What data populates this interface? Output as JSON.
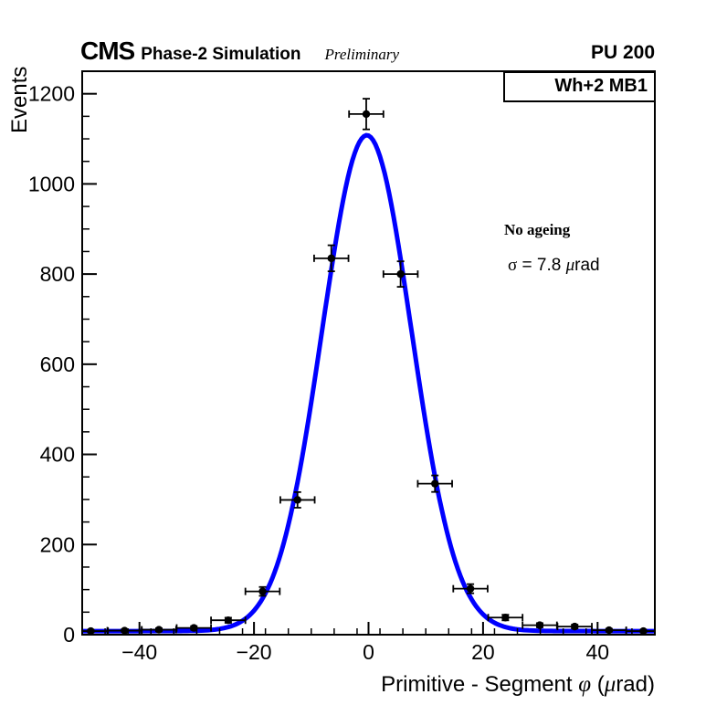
{
  "header": {
    "experiment": "CMS",
    "subtitle": "Phase-2 Simulation",
    "preliminary": "Preliminary",
    "pileup": "PU 200"
  },
  "pave": {
    "label": "Wh+2 MB1"
  },
  "annotations": {
    "ageing": "No ageing",
    "sigma_text_full": "σ = 7.8  μrad",
    "sigma_symbol": "σ",
    "sigma_value": " = 7.8 ",
    "sigma_unit_mu": "μ",
    "sigma_unit_rest": "rad"
  },
  "axis_titles": {
    "y": "Events",
    "x_full": "Primitive - Segment φ (μrad)",
    "x_pre": "Primitive - Segment ",
    "x_phi": "φ",
    "x_mid": " (",
    "x_mu": "μ",
    "x_post": "rad)"
  },
  "chart_data": {
    "type": "scatter",
    "title": "Wh+2 MB1",
    "xlabel": "Primitive - Segment φ (μrad)",
    "ylabel": "Events",
    "xlim": [
      -50,
      50
    ],
    "ylim": [
      0,
      1250
    ],
    "grid": false,
    "legend": "none",
    "x_major_ticks": [
      -40,
      -20,
      0,
      20,
      40
    ],
    "x_minor_tick_step": 4,
    "y_major_ticks": [
      0,
      200,
      400,
      600,
      800,
      1000,
      1200
    ],
    "y_minor_tick_step": 50,
    "series": [
      {
        "name": "simulation-data-points",
        "marker": "filled-circle",
        "color": "#000000",
        "x": [
          -48.5,
          -42.6,
          -36.6,
          -30.5,
          -24.5,
          -18.5,
          -12.4,
          -6.5,
          -0.4,
          5.6,
          11.6,
          17.8,
          23.9,
          29.9,
          36.0,
          42.0,
          48.0
        ],
        "y": [
          8,
          9,
          11,
          15,
          32,
          96,
          299,
          835,
          1155,
          800,
          335,
          102,
          38,
          21,
          18,
          10,
          8
        ],
        "xerr": 3,
        "yerr": [
          2.8,
          3.0,
          3.3,
          3.9,
          5.7,
          9.8,
          17.3,
          28.9,
          34.0,
          28.3,
          18.3,
          10.1,
          6.2,
          4.6,
          4.2,
          3.2,
          2.8
        ]
      }
    ],
    "fit": {
      "name": "gaussian-fit",
      "shape": "gaussian",
      "amplitude": 1100,
      "mean": -0.3,
      "sigma_urad": 7.8,
      "offset": 8,
      "color": "#0000ff",
      "linewidth": 5
    }
  }
}
